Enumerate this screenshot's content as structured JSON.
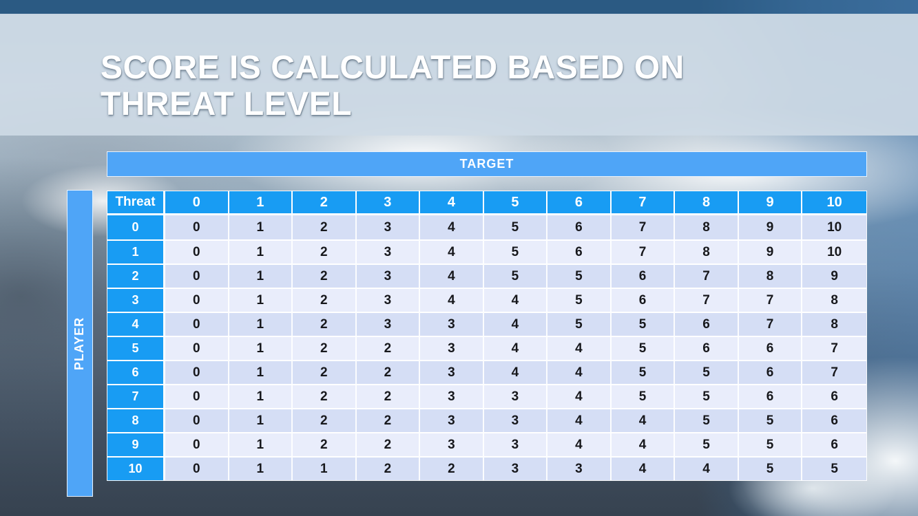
{
  "slide": {
    "title_line1": "SCORE IS CALCULATED BASED ON",
    "title_line2": "THREAT LEVEL"
  },
  "table": {
    "target_label": "TARGET",
    "player_label": "PLAYER",
    "corner_label": "Threat",
    "column_headers": [
      "0",
      "1",
      "2",
      "3",
      "4",
      "5",
      "6",
      "7",
      "8",
      "9",
      "10"
    ],
    "row_headers": [
      "0",
      "1",
      "2",
      "3",
      "4",
      "5",
      "6",
      "7",
      "8",
      "9",
      "10"
    ],
    "rows": [
      [
        0,
        1,
        2,
        3,
        4,
        5,
        6,
        7,
        8,
        9,
        10
      ],
      [
        0,
        1,
        2,
        3,
        4,
        5,
        6,
        7,
        8,
        9,
        10
      ],
      [
        0,
        1,
        2,
        3,
        4,
        5,
        5,
        6,
        7,
        8,
        9
      ],
      [
        0,
        1,
        2,
        3,
        4,
        4,
        5,
        6,
        7,
        7,
        8
      ],
      [
        0,
        1,
        2,
        3,
        3,
        4,
        5,
        5,
        6,
        7,
        8
      ],
      [
        0,
        1,
        2,
        2,
        3,
        4,
        4,
        5,
        6,
        6,
        7
      ],
      [
        0,
        1,
        2,
        2,
        3,
        4,
        4,
        5,
        5,
        6,
        7
      ],
      [
        0,
        1,
        2,
        2,
        3,
        3,
        4,
        5,
        5,
        6,
        6
      ],
      [
        0,
        1,
        2,
        2,
        3,
        3,
        4,
        4,
        5,
        5,
        6
      ],
      [
        0,
        1,
        2,
        2,
        3,
        3,
        4,
        4,
        5,
        5,
        6
      ],
      [
        0,
        1,
        1,
        2,
        2,
        3,
        3,
        4,
        4,
        5,
        5
      ]
    ]
  },
  "chart_data": {
    "type": "table",
    "title": "Score is calculated based on threat level",
    "xlabel": "TARGET",
    "ylabel": "PLAYER",
    "corner_label": "Threat",
    "columns": [
      "0",
      "1",
      "2",
      "3",
      "4",
      "5",
      "6",
      "7",
      "8",
      "9",
      "10"
    ],
    "row_headers": [
      "0",
      "1",
      "2",
      "3",
      "4",
      "5",
      "6",
      "7",
      "8",
      "9",
      "10"
    ],
    "rows": [
      [
        0,
        1,
        2,
        3,
        4,
        5,
        6,
        7,
        8,
        9,
        10
      ],
      [
        0,
        1,
        2,
        3,
        4,
        5,
        6,
        7,
        8,
        9,
        10
      ],
      [
        0,
        1,
        2,
        3,
        4,
        5,
        5,
        6,
        7,
        8,
        9
      ],
      [
        0,
        1,
        2,
        3,
        4,
        4,
        5,
        6,
        7,
        7,
        8
      ],
      [
        0,
        1,
        2,
        3,
        3,
        4,
        5,
        5,
        6,
        7,
        8
      ],
      [
        0,
        1,
        2,
        2,
        3,
        4,
        4,
        5,
        6,
        6,
        7
      ],
      [
        0,
        1,
        2,
        2,
        3,
        4,
        4,
        5,
        5,
        6,
        7
      ],
      [
        0,
        1,
        2,
        2,
        3,
        3,
        4,
        5,
        5,
        6,
        6
      ],
      [
        0,
        1,
        2,
        2,
        3,
        3,
        4,
        4,
        5,
        5,
        6
      ],
      [
        0,
        1,
        2,
        2,
        3,
        3,
        4,
        4,
        5,
        5,
        6
      ],
      [
        0,
        1,
        1,
        2,
        2,
        3,
        3,
        4,
        4,
        5,
        5
      ]
    ]
  },
  "colors": {
    "header_blue": "#189CF3",
    "band_blue": "#4FA5F7",
    "row_band_dark": "#D5DEF5",
    "row_band_light": "#E9EDFB",
    "cell_text": "#17181C",
    "title_text": "#FFFFFF",
    "title_band_bg": "rgba(206,218,229,0.9)"
  }
}
